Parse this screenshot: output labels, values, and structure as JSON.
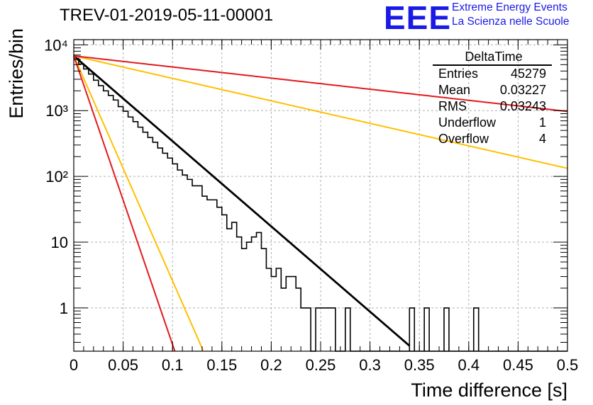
{
  "title": "TREV-01-2019-05-11-00001",
  "logo": {
    "text": "EEE",
    "line1": "Extreme Energy Events",
    "line2": "La Scienza nelle Scuole",
    "color": "#1a1ae6"
  },
  "stats": {
    "title": "DeltaTime",
    "rows": [
      {
        "label": "Entries",
        "value": "45279"
      },
      {
        "label": "Mean",
        "value": "0.03227"
      },
      {
        "label": "RMS",
        "value": "0.03243"
      },
      {
        "label": "Underflow",
        "value": "1"
      },
      {
        "label": "Overflow",
        "value": "4"
      }
    ]
  },
  "chart_data": {
    "type": "line",
    "title": "TREV-01-2019-05-11-00001",
    "xlabel": "Time difference [s]",
    "ylabel": "Entries/bin",
    "xlim": [
      0,
      0.5
    ],
    "ylim": [
      0.22,
      12000
    ],
    "yscale": "log",
    "grid": true,
    "x_ticks": [
      "0",
      "0.05",
      "0.1",
      "0.15",
      "0.2",
      "0.25",
      "0.3",
      "0.35",
      "0.4",
      "0.45",
      "0.5"
    ],
    "y_ticks": [
      {
        "value": 10000,
        "label": "10⁴"
      },
      {
        "value": 1000,
        "label": "10³"
      },
      {
        "value": 100,
        "label": "10²"
      },
      {
        "value": 10,
        "label": "10"
      },
      {
        "value": 1,
        "label": "1"
      }
    ],
    "histogram": {
      "color": "#000000",
      "bin_width": 0.005,
      "x_start": 0,
      "values": [
        6200,
        5100,
        4300,
        3600,
        2900,
        2400,
        2000,
        1700,
        1450,
        1150,
        980,
        800,
        680,
        560,
        470,
        390,
        330,
        270,
        225,
        190,
        155,
        125,
        105,
        90,
        72,
        72,
        50,
        44,
        44,
        34,
        26,
        16,
        20,
        12,
        8,
        10,
        12,
        14,
        8,
        4,
        3,
        4,
        2,
        3,
        3,
        2,
        1,
        1,
        0,
        1,
        1,
        1,
        1,
        0,
        0,
        1,
        0,
        0,
        0,
        0,
        0,
        0,
        0,
        0,
        0,
        0,
        0,
        0,
        0,
        0,
        0,
        0,
        0,
        0,
        0,
        0,
        0,
        0,
        0,
        0,
        0,
        0,
        0,
        0,
        0,
        0,
        0,
        0,
        0,
        0,
        0,
        0,
        0,
        0,
        0,
        0,
        0,
        0,
        0,
        0
      ]
    },
    "spikes_at": [
      0.34,
      0.355,
      0.375,
      0.405
    ],
    "series": [
      {
        "color": "#000000",
        "amplitude": 6800,
        "tau": 0.0335,
        "x_max": 0.34
      },
      {
        "color": "#ffc000",
        "amplitude": 6800,
        "tau": 0.0127,
        "x_max": 0.135
      },
      {
        "color": "#e31a1c",
        "amplitude": 6800,
        "tau": 0.0099,
        "x_max": 0.106
      },
      {
        "color": "#ffc000",
        "amplitude": 6800,
        "tau": 0.127,
        "x_max": 0.5
      },
      {
        "color": "#e31a1c",
        "amplitude": 6800,
        "tau": 0.257,
        "x_max": 0.5
      }
    ]
  }
}
